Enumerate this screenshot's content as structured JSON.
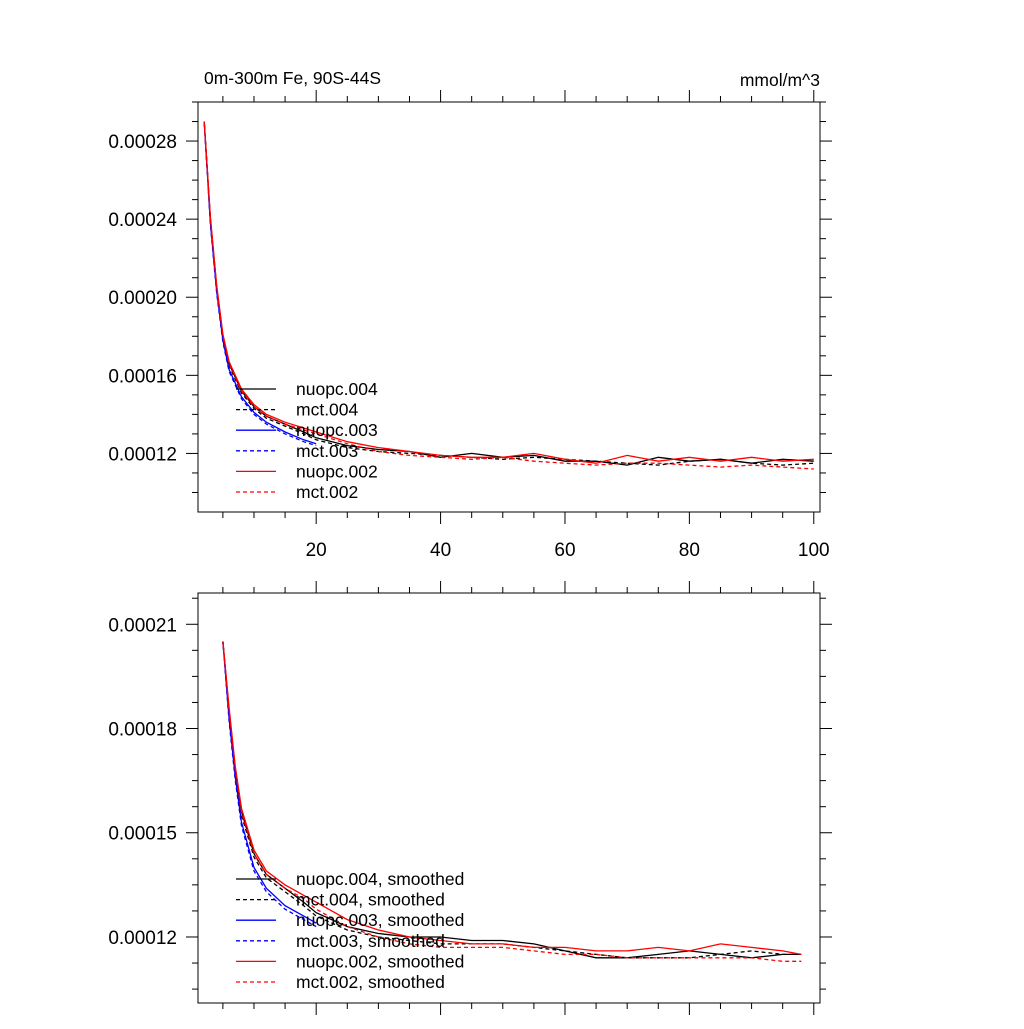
{
  "chart_data": [
    {
      "type": "line",
      "title": "0m-300m Fe, 90S-44S",
      "units": "mmol/m^3",
      "xlabel": "",
      "ylabel": "",
      "xlim": [
        1,
        101
      ],
      "ylim": [
        9e-05,
        0.0003
      ],
      "xticks": [
        20,
        40,
        60,
        80,
        100
      ],
      "yticks": [
        0.00012,
        0.00016,
        0.0002,
        0.00024,
        0.00028
      ],
      "ytick_labels": [
        "0.00012",
        "0.00016",
        "0.00020",
        "0.00024",
        "0.00028"
      ],
      "xtick_labels": [
        "20",
        "40",
        "60",
        "80",
        "100"
      ],
      "legend": [
        "nuopc.004",
        "mct.004",
        "nuopc.003",
        "mct.003",
        "nuopc.002",
        "mct.002"
      ],
      "legend_placement": "bottom-left",
      "series": [
        {
          "name": "nuopc.004",
          "color": "#000000",
          "dash": "solid",
          "x": [
            2,
            3,
            4,
            5,
            6,
            8,
            10,
            12,
            15,
            18,
            20,
            25,
            30,
            35,
            40,
            45,
            50,
            55,
            60,
            65,
            70,
            75,
            80,
            85,
            90,
            95,
            100
          ],
          "y": [
            0.00029,
            0.00024,
            0.000205,
            0.00018,
            0.000166,
            0.000152,
            0.000144,
            0.000139,
            0.000135,
            0.000131,
            0.000128,
            0.000124,
            0.000122,
            0.000121,
            0.000118,
            0.00012,
            0.000118,
            0.000119,
            0.000116,
            0.000116,
            0.000114,
            0.000118,
            0.000116,
            0.000117,
            0.000115,
            0.000117,
            0.000116
          ]
        },
        {
          "name": "mct.004",
          "color": "#000000",
          "dash": "dashed",
          "x": [
            2,
            3,
            4,
            5,
            6,
            8,
            10,
            12,
            15,
            18,
            20,
            25,
            30,
            35,
            40,
            45,
            50,
            55,
            60,
            65,
            70,
            75,
            80,
            85,
            90,
            95,
            100
          ],
          "y": [
            0.00029,
            0.00024,
            0.000204,
            0.000179,
            0.000165,
            0.000151,
            0.000143,
            0.000138,
            0.000134,
            0.00013,
            0.000127,
            0.000123,
            0.000121,
            0.00012,
            0.000119,
            0.000118,
            0.000117,
            0.000118,
            0.000117,
            0.000116,
            0.000115,
            0.000114,
            0.000116,
            0.000117,
            0.000115,
            0.000114,
            0.000115
          ]
        },
        {
          "name": "nuopc.003",
          "color": "#0000ff",
          "dash": "solid",
          "x": [
            2,
            3,
            4,
            5,
            6,
            8,
            10,
            12,
            15,
            18,
            20
          ],
          "y": [
            0.00029,
            0.000238,
            0.000203,
            0.000178,
            0.000163,
            0.000149,
            0.000141,
            0.000136,
            0.000131,
            0.000127,
            0.000125
          ]
        },
        {
          "name": "mct.003",
          "color": "#0000ff",
          "dash": "dashed",
          "x": [
            2,
            3,
            4,
            5,
            6,
            8,
            10,
            12,
            15,
            18,
            20
          ],
          "y": [
            0.00029,
            0.000237,
            0.000202,
            0.000177,
            0.000162,
            0.000148,
            0.00014,
            0.000135,
            0.00013,
            0.000126,
            0.000124
          ]
        },
        {
          "name": "nuopc.002",
          "color": "#ff0000",
          "dash": "solid",
          "x": [
            2,
            3,
            4,
            5,
            6,
            8,
            10,
            12,
            15,
            18,
            20,
            25,
            30,
            35,
            40,
            45,
            50,
            55,
            60,
            65,
            70,
            75,
            80,
            85,
            90,
            95,
            100
          ],
          "y": [
            0.00029,
            0.000241,
            0.000206,
            0.000181,
            0.000167,
            0.000153,
            0.000145,
            0.00014,
            0.000136,
            0.000133,
            0.000131,
            0.000126,
            0.000123,
            0.000121,
            0.000119,
            0.000118,
            0.000118,
            0.00012,
            0.000117,
            0.000115,
            0.000119,
            0.000116,
            0.000118,
            0.000116,
            0.000118,
            0.000116,
            0.000117
          ]
        },
        {
          "name": "mct.002",
          "color": "#ff0000",
          "dash": "dashed",
          "x": [
            2,
            3,
            4,
            5,
            6,
            8,
            10,
            12,
            15,
            18,
            20,
            25,
            30,
            35,
            40,
            45,
            50,
            55,
            60,
            65,
            70,
            75,
            80,
            85,
            90,
            95,
            100
          ],
          "y": [
            0.00029,
            0.00024,
            0.000205,
            0.00018,
            0.000166,
            0.000152,
            0.000144,
            0.000139,
            0.000135,
            0.000132,
            0.00013,
            0.000125,
            0.000121,
            0.000119,
            0.000118,
            0.000117,
            0.000118,
            0.000116,
            0.000115,
            0.000114,
            0.000115,
            0.000115,
            0.000114,
            0.000113,
            0.000114,
            0.000113,
            0.000112
          ]
        }
      ]
    },
    {
      "type": "line",
      "title": "",
      "xlabel": "",
      "ylabel": "",
      "xlim": [
        1,
        101
      ],
      "ylim": [
        0.000101,
        0.000219
      ],
      "yticks": [
        0.00012,
        0.00015,
        0.00018,
        0.00021
      ],
      "ytick_labels": [
        "0.00012",
        "0.00015",
        "0.00018",
        "0.00021"
      ],
      "legend": [
        "nuopc.004, smoothed",
        "mct.004, smoothed",
        "nuopc.003, smoothed",
        "mct.003, smoothed",
        "nuopc.002, smoothed",
        "mct.002, smoothed"
      ],
      "legend_placement": "bottom-left",
      "series": [
        {
          "name": "nuopc.004, smoothed",
          "color": "#000000",
          "dash": "solid",
          "x": [
            5,
            6,
            7,
            8,
            10,
            12,
            15,
            18,
            20,
            25,
            30,
            35,
            40,
            45,
            50,
            55,
            60,
            65,
            70,
            75,
            80,
            85,
            90,
            95,
            98
          ],
          "y": [
            0.000205,
            0.000185,
            0.000168,
            0.000156,
            0.000144,
            0.000138,
            0.000134,
            0.00013,
            0.000127,
            0.000123,
            0.000121,
            0.00012,
            0.00012,
            0.000119,
            0.000119,
            0.000118,
            0.000116,
            0.000114,
            0.000114,
            0.000115,
            0.000116,
            0.000115,
            0.000114,
            0.000115,
            0.000115
          ]
        },
        {
          "name": "mct.004, smoothed",
          "color": "#000000",
          "dash": "dashed",
          "x": [
            5,
            6,
            7,
            8,
            10,
            12,
            15,
            18,
            20,
            25,
            30,
            35,
            40,
            45,
            50,
            55,
            60,
            65,
            70,
            75,
            80,
            85,
            90,
            95,
            98
          ],
          "y": [
            0.000205,
            0.000184,
            0.000167,
            0.000155,
            0.000143,
            0.000137,
            0.000133,
            0.000129,
            0.000126,
            0.000122,
            0.00012,
            0.000119,
            0.000118,
            0.000118,
            0.000118,
            0.000117,
            0.000116,
            0.000115,
            0.000114,
            0.000114,
            0.000114,
            0.000115,
            0.000116,
            0.000115,
            0.000115
          ]
        },
        {
          "name": "nuopc.003, smoothed",
          "color": "#0000ff",
          "dash": "solid",
          "x": [
            5,
            6,
            7,
            8,
            10,
            12,
            15,
            18,
            20
          ],
          "y": [
            0.000205,
            0.000183,
            0.000166,
            0.000153,
            0.00014,
            0.000134,
            0.000129,
            0.000126,
            0.000124
          ]
        },
        {
          "name": "mct.003, smoothed",
          "color": "#0000ff",
          "dash": "dashed",
          "x": [
            5,
            6,
            7,
            8,
            10,
            12,
            15,
            18,
            20
          ],
          "y": [
            0.000205,
            0.000182,
            0.000165,
            0.000152,
            0.000139,
            0.000133,
            0.000128,
            0.000125,
            0.000123
          ]
        },
        {
          "name": "nuopc.002, smoothed",
          "color": "#ff0000",
          "dash": "solid",
          "x": [
            5,
            6,
            7,
            8,
            10,
            12,
            15,
            18,
            20,
            25,
            30,
            35,
            40,
            45,
            50,
            55,
            60,
            65,
            70,
            75,
            80,
            85,
            90,
            95,
            98
          ],
          "y": [
            0.000205,
            0.000186,
            0.000169,
            0.000157,
            0.000145,
            0.000139,
            0.000135,
            0.000132,
            0.00013,
            0.000125,
            0.000122,
            0.00012,
            0.000119,
            0.000118,
            0.000118,
            0.000117,
            0.000117,
            0.000116,
            0.000116,
            0.000117,
            0.000116,
            0.000118,
            0.000117,
            0.000116,
            0.000115
          ]
        },
        {
          "name": "mct.002, smoothed",
          "color": "#ff0000",
          "dash": "dashed",
          "x": [
            5,
            6,
            7,
            8,
            10,
            12,
            15,
            18,
            20,
            25,
            30,
            35,
            40,
            45,
            50,
            55,
            60,
            65,
            70,
            75,
            80,
            85,
            90,
            95,
            98
          ],
          "y": [
            0.000205,
            0.000185,
            0.000168,
            0.000156,
            0.000144,
            0.000138,
            0.000134,
            0.000131,
            0.000128,
            0.000123,
            0.00012,
            0.000118,
            0.000117,
            0.000117,
            0.000117,
            0.000116,
            0.000115,
            0.000115,
            0.000114,
            0.000114,
            0.000114,
            0.000114,
            0.000114,
            0.000113,
            0.000113
          ]
        }
      ]
    }
  ]
}
